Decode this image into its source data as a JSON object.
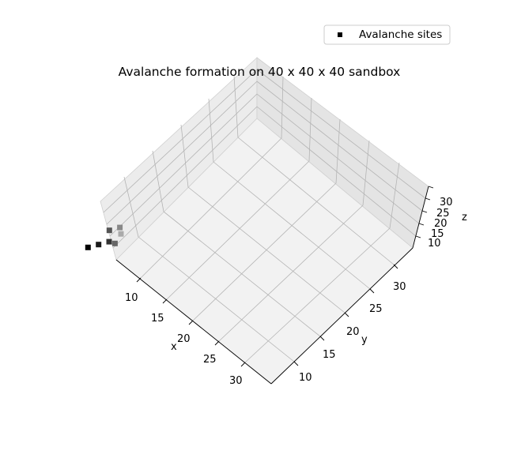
{
  "chart_data": {
    "type": "scatter",
    "projection": "3d",
    "title": "Avalanche formation on 40 x 40 x 40 sandbox",
    "xlabel": "x",
    "ylabel": "y",
    "zlabel": "z",
    "x_ticks": [
      "10",
      "15",
      "20",
      "25",
      "30"
    ],
    "y_ticks": [
      "10",
      "15",
      "20",
      "25",
      "30"
    ],
    "z_ticks": [
      "10",
      "15",
      "20",
      "25",
      "30"
    ],
    "legend": {
      "position": "top-right",
      "entries": [
        "Avalanche sites"
      ]
    },
    "series": [
      {
        "name": "Avalanche sites",
        "marker": "square",
        "points": [
          {
            "x": 2,
            "y": 2,
            "z": 12,
            "shade": "#000000"
          },
          {
            "x": 3,
            "y": 3,
            "z": 13,
            "shade": "#1a1a1a"
          },
          {
            "x": 4,
            "y": 4,
            "z": 14,
            "shade": "#333333"
          },
          {
            "x": 3,
            "y": 5,
            "z": 15,
            "shade": "#555555"
          },
          {
            "x": 5,
            "y": 4,
            "z": 15,
            "shade": "#666666"
          },
          {
            "x": 4,
            "y": 6,
            "z": 16,
            "shade": "#888888"
          },
          {
            "x": 5,
            "y": 5,
            "z": 17,
            "shade": "#aaaaaa"
          }
        ]
      }
    ],
    "grid": true
  }
}
